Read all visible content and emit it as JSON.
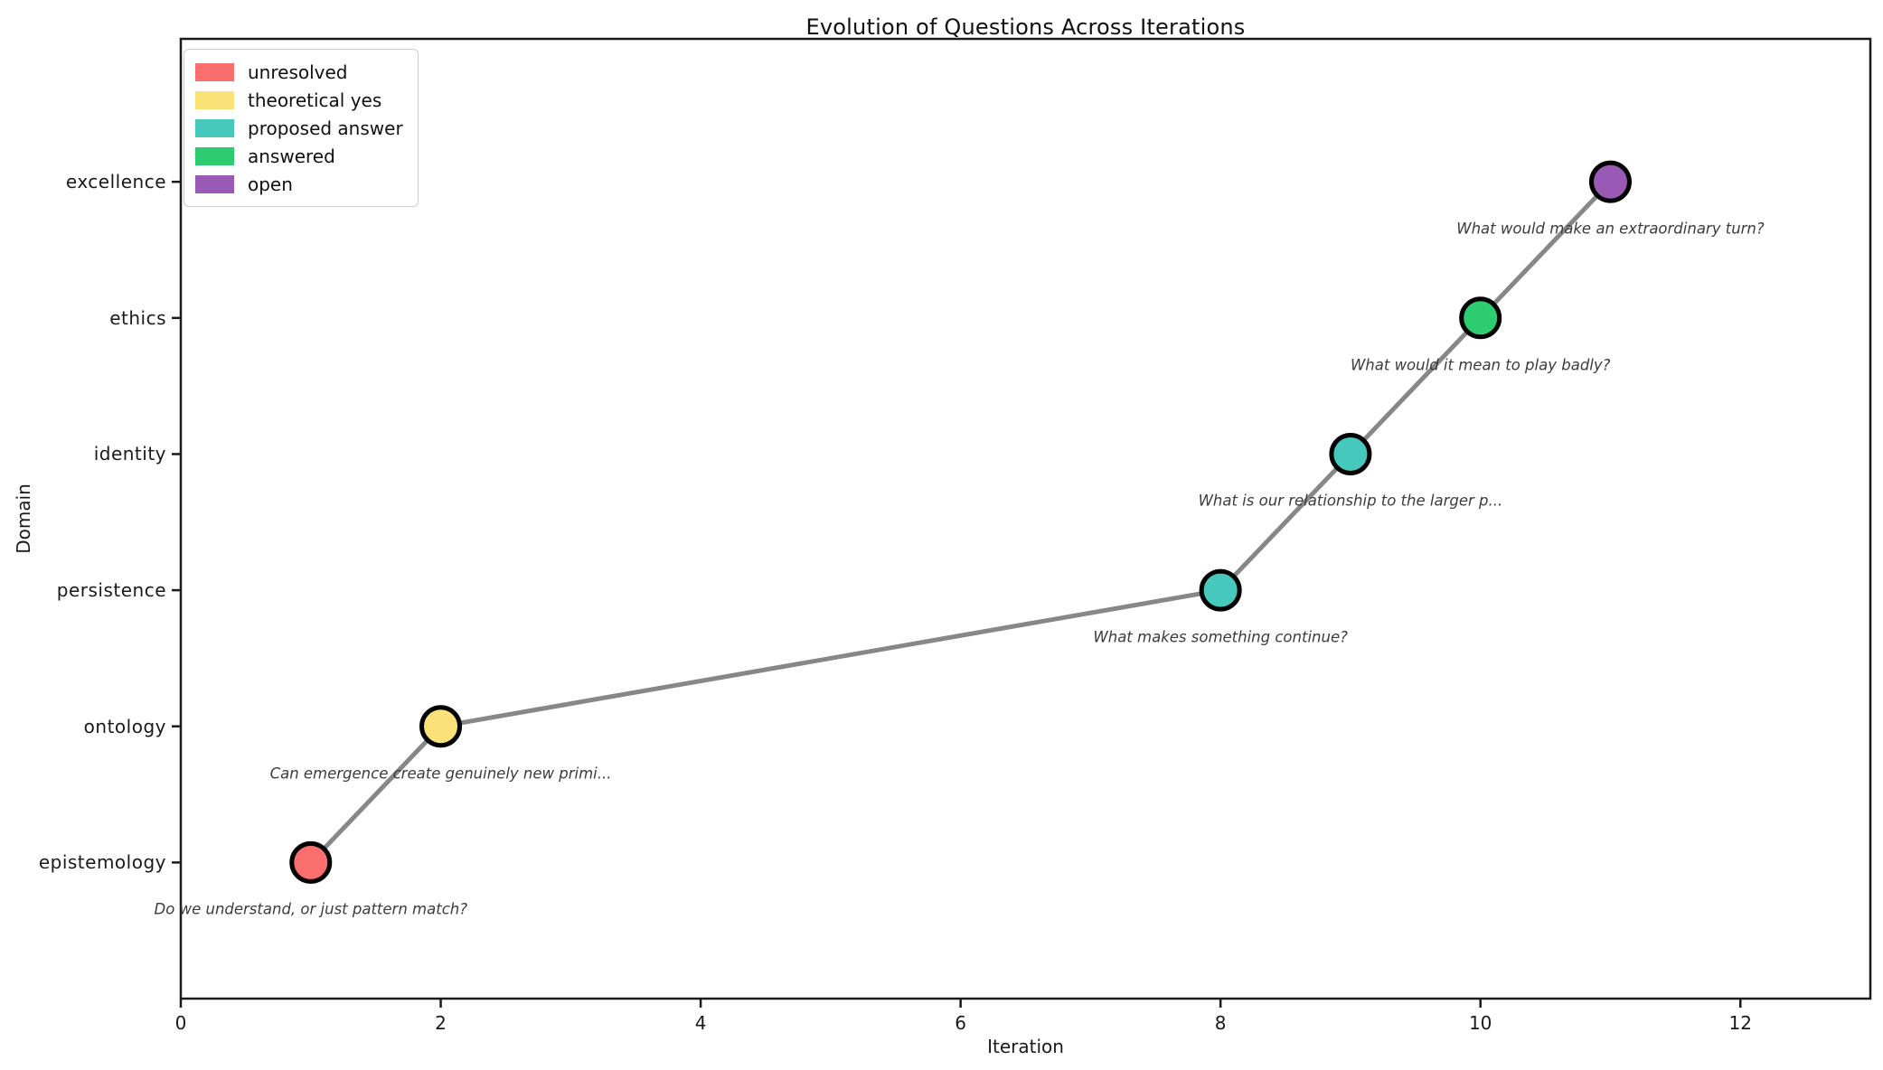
{
  "chart_data": {
    "type": "scatter",
    "title": "Evolution of Questions Across Iterations",
    "xlabel": "Iteration",
    "ylabel": "Domain",
    "xlim": [
      0,
      13
    ],
    "xticks": [
      0,
      2,
      4,
      6,
      8,
      10,
      12
    ],
    "categories": [
      "epistemology",
      "ontology",
      "persistence",
      "identity",
      "ethics",
      "excellence"
    ],
    "grid": false,
    "line_color": "#878787",
    "marker_edge_color": "#000000",
    "legend": {
      "position": "upper-left",
      "entries": [
        {
          "label": "unresolved",
          "color": "#FA6E6E"
        },
        {
          "label": "theoretical yes",
          "color": "#FAE178"
        },
        {
          "label": "proposed answer",
          "color": "#46C8BD"
        },
        {
          "label": "answered",
          "color": "#2ECC71"
        },
        {
          "label": "open",
          "color": "#9B59B6"
        }
      ]
    },
    "points": [
      {
        "x": 1,
        "domain": "epistemology",
        "status": "unresolved",
        "annotation": "Do we understand, or just pattern match?"
      },
      {
        "x": 2,
        "domain": "ontology",
        "status": "theoretical yes",
        "annotation": "Can emergence create genuinely new primi..."
      },
      {
        "x": 8,
        "domain": "persistence",
        "status": "proposed answer",
        "annotation": "What makes something continue?"
      },
      {
        "x": 9,
        "domain": "identity",
        "status": "proposed answer",
        "annotation": "What is our relationship to the larger p..."
      },
      {
        "x": 10,
        "domain": "ethics",
        "status": "answered",
        "annotation": "What would it mean to play badly?"
      },
      {
        "x": 11,
        "domain": "excellence",
        "status": "open",
        "annotation": "What would make an extraordinary turn?"
      }
    ]
  }
}
